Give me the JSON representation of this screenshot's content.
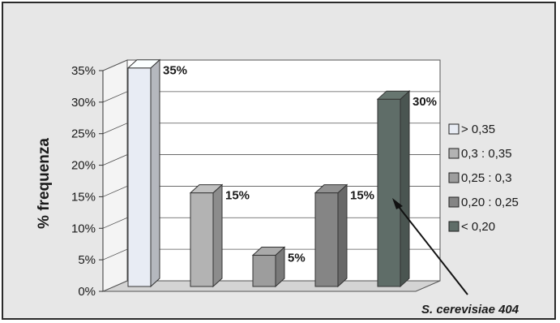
{
  "chart_data": {
    "type": "bar",
    "ylabel": "% frequenza",
    "ylim": [
      0,
      35
    ],
    "y_ticks": [
      "0%",
      "5%",
      "10%",
      "15%",
      "20%",
      "25%",
      "30%",
      "35%"
    ],
    "grid": true,
    "legend_position": "right",
    "series": [
      {
        "name": "> 0,35",
        "value": 35,
        "label": "35%",
        "color": "#e8ecf4"
      },
      {
        "name": "0,3 : 0,35",
        "value": 15,
        "label": "15%",
        "color": "#b3b3b3"
      },
      {
        "name": "0,25 : 0,3",
        "value": 5,
        "label": "5%",
        "color": "#9d9d9d"
      },
      {
        "name": "0,20 : 0,25",
        "value": 15,
        "label": "15%",
        "color": "#858585"
      },
      {
        "name": "< 0,20",
        "value": 30,
        "label": "30%",
        "color": "#5f6d68"
      }
    ],
    "annotation": {
      "text": "S. cerevisiae 404",
      "target_series": "< 0,20"
    }
  }
}
